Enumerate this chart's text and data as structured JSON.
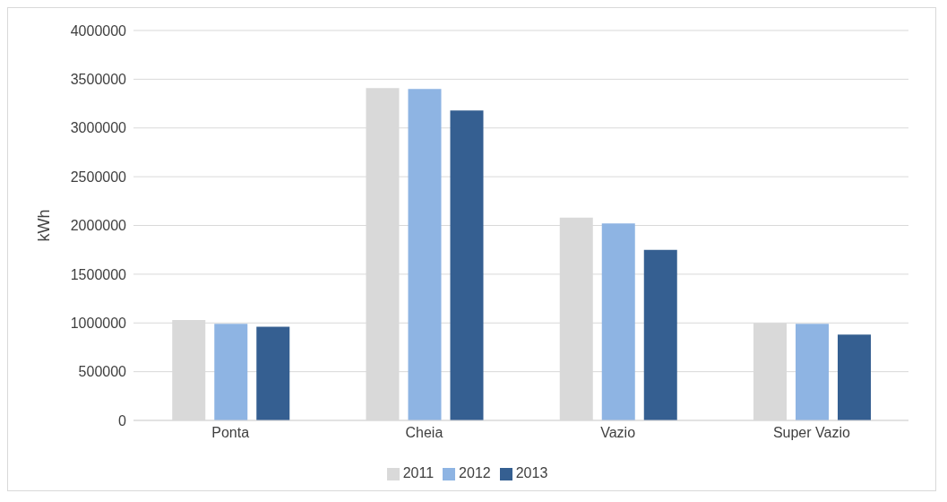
{
  "chart_data": {
    "type": "bar",
    "ylabel": "kWh",
    "categories": [
      "Ponta",
      "Cheia",
      "Vazio",
      "Super Vazio"
    ],
    "series": [
      {
        "name": "2011",
        "color": "#d9d9d9",
        "values": [
          1030000,
          3410000,
          2080000,
          1000000
        ]
      },
      {
        "name": "2012",
        "color": "#8eb4e3",
        "values": [
          990000,
          3400000,
          2020000,
          990000
        ]
      },
      {
        "name": "2013",
        "color": "#355f91",
        "values": [
          960000,
          3180000,
          1750000,
          880000
        ]
      }
    ],
    "ylim": [
      0,
      4000000
    ],
    "yticks": [
      0,
      500000,
      1000000,
      1500000,
      2000000,
      2500000,
      3000000,
      3500000,
      4000000
    ],
    "grid": "y",
    "legend": "bottom"
  }
}
